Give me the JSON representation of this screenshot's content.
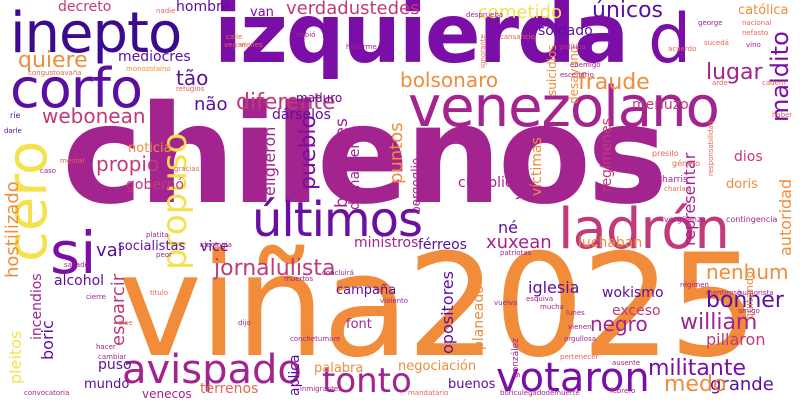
{
  "palette": {
    "purple": "#7b0ea6",
    "magenta": "#a3238f",
    "pink": "#c13a7a",
    "coral": "#e4684f",
    "orange": "#f08c3a",
    "yellow": "#f3e24c",
    "indigo": "#3b0a8f",
    "dark": "#1e0a5a"
  },
  "words": [
    {
      "text": "chilenos",
      "color": "#a3238f"
    },
    {
      "text": "viña2025",
      "color": "#f08c3a"
    },
    {
      "text": "izquierda",
      "color": "#7b0ea6"
    },
    {
      "text": "venezolano",
      "color": "#a3238f"
    },
    {
      "text": "inepto",
      "color": "#3b0a8f"
    },
    {
      "text": "corfo",
      "color": "#5a0f9e"
    },
    {
      "text": "d",
      "color": "#7b0ea6"
    },
    {
      "text": "cero",
      "color": "#f3e24c"
    },
    {
      "text": "si",
      "color": "#7b0ea6"
    },
    {
      "text": "últimos",
      "color": "#6a0fa0"
    },
    {
      "text": "ladrón",
      "color": "#c13a7a"
    },
    {
      "text": "avispado",
      "color": "#a3238f"
    },
    {
      "text": "tonto",
      "color": "#a3238f"
    },
    {
      "text": "votaron",
      "color": "#7b0ea6"
    },
    {
      "text": "propuso",
      "color": "#f3e24c"
    },
    {
      "text": "jornalulista",
      "color": "#c13a7a"
    },
    {
      "text": "bolsonaro",
      "color": "#f08c3a"
    },
    {
      "text": "diferente",
      "color": "#c13a7a"
    },
    {
      "text": "webonean",
      "color": "#c13a7a"
    },
    {
      "text": "quiere",
      "color": "#f08c3a"
    },
    {
      "text": "maldito",
      "color": "#7b0ea6"
    },
    {
      "text": "lugar",
      "color": "#a3238f"
    },
    {
      "text": "fraude",
      "color": "#f08c3a"
    },
    {
      "text": "verdadustedes",
      "color": "#c13a7a"
    },
    {
      "text": "cometido",
      "color": "#f3e24c"
    },
    {
      "text": "únicos",
      "color": "#5a0f9e"
    },
    {
      "text": "bonner",
      "color": "#5a0f9e"
    },
    {
      "text": "william",
      "color": "#a3238f"
    },
    {
      "text": "militante",
      "color": "#7b0ea6"
    },
    {
      "text": "grande",
      "color": "#5a0f9e"
    },
    {
      "text": "medo",
      "color": "#f08c3a"
    },
    {
      "text": "negro",
      "color": "#a3238f"
    },
    {
      "text": "nenhum",
      "color": "#f08c3a"
    },
    {
      "text": "xuxean",
      "color": "#a3238f"
    },
    {
      "text": "tão",
      "color": "#5a0f9e"
    },
    {
      "text": "não",
      "color": "#5a0f9e"
    },
    {
      "text": "mediocres",
      "color": "#5a0f9e"
    },
    {
      "text": "hombre",
      "color": "#5a0f9e"
    },
    {
      "text": "van",
      "color": "#7b0ea6"
    },
    {
      "text": "decreto",
      "color": "#c13a7a"
    },
    {
      "text": "soldado",
      "color": "#5a0f9e"
    },
    {
      "text": "católica",
      "color": "#f08c3a"
    },
    {
      "text": "merluzo",
      "color": "#c13a7a"
    },
    {
      "text": "pueblo",
      "color": "#7b0ea6"
    },
    {
      "text": "eligieron",
      "color": "#a3238f"
    },
    {
      "text": "berrinches",
      "color": "#a3238f"
    },
    {
      "text": "dignamente",
      "color": "#a3238f"
    },
    {
      "text": "puntos",
      "color": "#f08c3a"
    },
    {
      "text": "hostilizado",
      "color": "#f08c3a"
    },
    {
      "text": "propio",
      "color": "#c13a7a"
    },
    {
      "text": "noticia",
      "color": "#f08c3a"
    },
    {
      "text": "gobernó",
      "color": "#c13a7a"
    },
    {
      "text": "vai",
      "color": "#5a0f9e"
    },
    {
      "text": "socialistas",
      "color": "#5a0f9e"
    },
    {
      "text": "vice",
      "color": "#5a0f9e"
    },
    {
      "text": "ministros",
      "color": "#a3238f"
    },
    {
      "text": "férreos",
      "color": "#5a0f9e"
    },
    {
      "text": "cumplió",
      "color": "#a3238f"
    },
    {
      "text": "viviesen",
      "color": "#a3238f"
    },
    {
      "text": "víctimas",
      "color": "#f08c3a"
    },
    {
      "text": "regímenes",
      "color": "#c13a7a"
    },
    {
      "text": "representar",
      "color": "#a3238f"
    },
    {
      "text": "autoridad",
      "color": "#f08c3a"
    },
    {
      "text": "dios",
      "color": "#c13a7a"
    },
    {
      "text": "doris",
      "color": "#f08c3a"
    },
    {
      "text": "luchaban",
      "color": "#f08c3a"
    },
    {
      "text": "iglesia",
      "color": "#5a0f9e"
    },
    {
      "text": "wokismo",
      "color": "#5a0f9e"
    },
    {
      "text": "exceso",
      "color": "#c13a7a"
    },
    {
      "text": "pillaron",
      "color": "#c13a7a"
    },
    {
      "text": "alcohol",
      "color": "#5a0f9e"
    },
    {
      "text": "pleitos",
      "color": "#f3e24c"
    },
    {
      "text": "incendios",
      "color": "#a3238f"
    },
    {
      "text": "esparcir",
      "color": "#c13a7a"
    },
    {
      "text": "boric",
      "color": "#5a0f9e"
    },
    {
      "text": "mundo",
      "color": "#5a0f9e"
    },
    {
      "text": "puso",
      "color": "#5a0f9e"
    },
    {
      "text": "campaña",
      "color": "#5a0f9e"
    },
    {
      "text": "palabra",
      "color": "#f08c3a"
    },
    {
      "text": "font",
      "color": "#a3238f"
    },
    {
      "text": "opositores",
      "color": "#5a0f9e"
    },
    {
      "text": "planeado",
      "color": "#f08c3a"
    },
    {
      "text": "negociación",
      "color": "#f08c3a"
    },
    {
      "text": "buenos",
      "color": "#5a0f9e"
    },
    {
      "text": "aplica",
      "color": "#5a0f9e"
    },
    {
      "text": "venecos",
      "color": "#a3238f"
    },
    {
      "text": "terrenos",
      "color": "#e4684f"
    },
    {
      "text": "maduro",
      "color": "#5a0f9e"
    },
    {
      "text": "dárselos",
      "color": "#5a0f9e"
    },
    {
      "text": "suicidios",
      "color": "#f08c3a"
    },
    {
      "text": "desayuno",
      "color": "#f08c3a"
    },
    {
      "text": "bergoglio",
      "color": "#a3238f"
    },
    {
      "text": "né",
      "color": "#5a0f9e"
    },
    {
      "text": "quitando",
      "color": "#f08c3a"
    },
    {
      "text": "harris",
      "color": "#a3238f"
    },
    {
      "text": "presilo",
      "color": "#e4684f"
    },
    {
      "text": "género",
      "color": "#e4684f"
    },
    {
      "text": "vergüenza",
      "color": "#a3238f"
    },
    {
      "text": "contingencia",
      "color": "#a3238f"
    },
    {
      "text": "nacional",
      "color": "#e4684f"
    },
    {
      "text": "nefasto",
      "color": "#e4684f"
    },
    {
      "text": "vino",
      "color": "#a3238f"
    },
    {
      "text": "george",
      "color": "#a3238f"
    },
    {
      "text": "política",
      "color": "#c13a7a"
    },
    {
      "text": "enemigo",
      "color": "#a3238f"
    },
    {
      "text": "escenario",
      "color": "#a3238f"
    },
    {
      "text": "cansancio",
      "color": "#e4684f"
    },
    {
      "text": "ignorante",
      "color": "#e4684f"
    },
    {
      "text": "hacerme",
      "color": "#a3238f"
    },
    {
      "text": "desprueba",
      "color": "#a3238f"
    },
    {
      "text": "debió",
      "color": "#a3238f"
    },
    {
      "text": "monozolaino",
      "color": "#f08c3a"
    },
    {
      "text": "congustoavaña",
      "color": "#e4684f"
    },
    {
      "text": "refugios",
      "color": "#e4684f"
    },
    {
      "text": "nadie",
      "color": "#e4684f"
    },
    {
      "text": "ríe",
      "color": "#5a0f9e"
    },
    {
      "text": "darle",
      "color": "#5a0f9e"
    },
    {
      "text": "caso",
      "color": "#a3238f"
    },
    {
      "text": "mental",
      "color": "#e4684f"
    },
    {
      "text": "gracias",
      "color": "#e4684f"
    },
    {
      "text": "platita",
      "color": "#a3238f"
    },
    {
      "text": "ideología",
      "color": "#a3238f"
    },
    {
      "text": "peor",
      "color": "#a3238f"
    },
    {
      "text": "sacado",
      "color": "#a3238f"
    },
    {
      "text": "cierre",
      "color": "#a3238f"
    },
    {
      "text": "título",
      "color": "#e4684f"
    },
    {
      "text": "dice",
      "color": "#e4684f"
    },
    {
      "text": "hacer",
      "color": "#a3238f"
    },
    {
      "text": "cambiar",
      "color": "#a3238f"
    },
    {
      "text": "dijo",
      "color": "#a3238f"
    },
    {
      "text": "muertos",
      "color": "#a3238f"
    },
    {
      "text": "concluirá",
      "color": "#a3238f"
    },
    {
      "text": "conchetumare",
      "color": "#a3238f"
    },
    {
      "text": "violento",
      "color": "#a3238f"
    },
    {
      "text": "esquiva",
      "color": "#a3238f"
    },
    {
      "text": "mucha",
      "color": "#a3238f"
    },
    {
      "text": "lunes",
      "color": "#a3238f"
    },
    {
      "text": "vienen",
      "color": "#a3238f"
    },
    {
      "text": "orgullosa",
      "color": "#a3238f"
    },
    {
      "text": "ausente",
      "color": "#a3238f"
    },
    {
      "text": "febrero",
      "color": "#a3238f"
    },
    {
      "text": "régimen",
      "color": "#a3238f"
    },
    {
      "text": "mentiroso",
      "color": "#a3238f"
    },
    {
      "text": "humorista",
      "color": "#a3238f"
    },
    {
      "text": "amigo",
      "color": "#a3238f"
    },
    {
      "text": "patriotas",
      "color": "#a3238f"
    },
    {
      "text": "inmigrantes",
      "color": "#a3238f"
    },
    {
      "text": "mandatario",
      "color": "#e4684f"
    },
    {
      "text": "convocatoria",
      "color": "#a3238f"
    },
    {
      "text": "boriculegadodemuerte",
      "color": "#a3238f"
    },
    {
      "text": "gonzález",
      "color": "#a3238f"
    },
    {
      "text": "vuelva",
      "color": "#a3238f"
    },
    {
      "text": "pertenecer",
      "color": "#e4684f"
    },
    {
      "text": "haber",
      "color": "#e4684f"
    },
    {
      "text": "cadem",
      "color": "#e4684f"
    },
    {
      "text": "arde",
      "color": "#e4684f"
    },
    {
      "text": "responsabilidad",
      "color": "#e4684f"
    },
    {
      "text": "charlas",
      "color": "#e4684f"
    },
    {
      "text": "acuerdo",
      "color": "#e4684f"
    },
    {
      "text": "sucedá",
      "color": "#e4684f"
    },
    {
      "text": "calle",
      "color": "#e4684f"
    },
    {
      "text": "vienes",
      "color": "#e4684f"
    },
    {
      "text": "vegan",
      "color": "#e4684f"
    }
  ]
}
